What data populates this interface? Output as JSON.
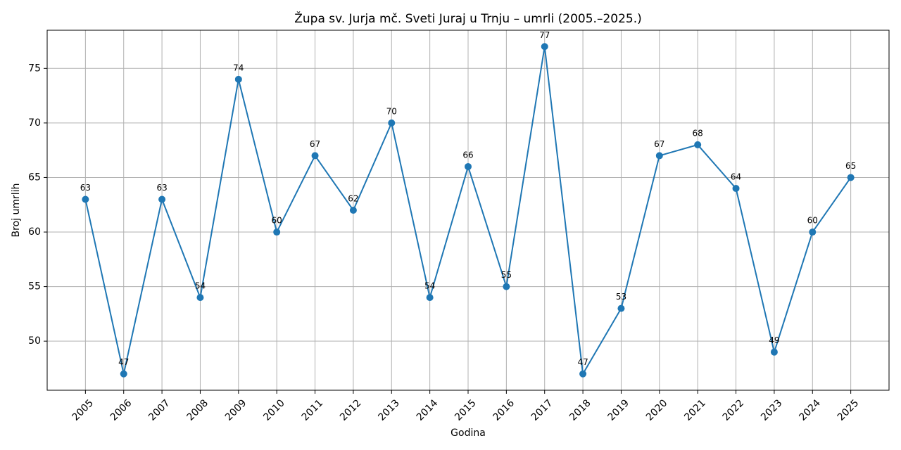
{
  "chart_data": {
    "type": "line",
    "title": "Župa sv. Jurja mč. Sveti Juraj u Trnju – umrli (2005.–2025.)",
    "x_label": "Godina",
    "y_label": "Broj umrlih",
    "x": [
      2005,
      2006,
      2007,
      2008,
      2009,
      2010,
      2011,
      2012,
      2013,
      2014,
      2015,
      2016,
      2017,
      2018,
      2019,
      2020,
      2021,
      2022,
      2023,
      2024,
      2025
    ],
    "series": [
      {
        "color": "#1f77b4",
        "values": [
          63,
          47,
          63,
          54,
          74,
          60,
          67,
          62,
          70,
          54,
          66,
          55,
          77,
          47,
          53,
          67,
          68,
          64,
          49,
          60,
          65
        ]
      }
    ],
    "xlim": [
      2004,
      2026
    ],
    "xticks": [
      2005,
      2006,
      2007,
      2008,
      2009,
      2010,
      2011,
      2012,
      2013,
      2014,
      2015,
      2016,
      2017,
      2018,
      2019,
      2020,
      2021,
      2022,
      2023,
      2024,
      2025
    ],
    "ylim": [
      45.5,
      78.5
    ],
    "yticks": [
      50,
      55,
      60,
      65,
      70,
      75
    ],
    "grid": true,
    "data_labels": true
  }
}
